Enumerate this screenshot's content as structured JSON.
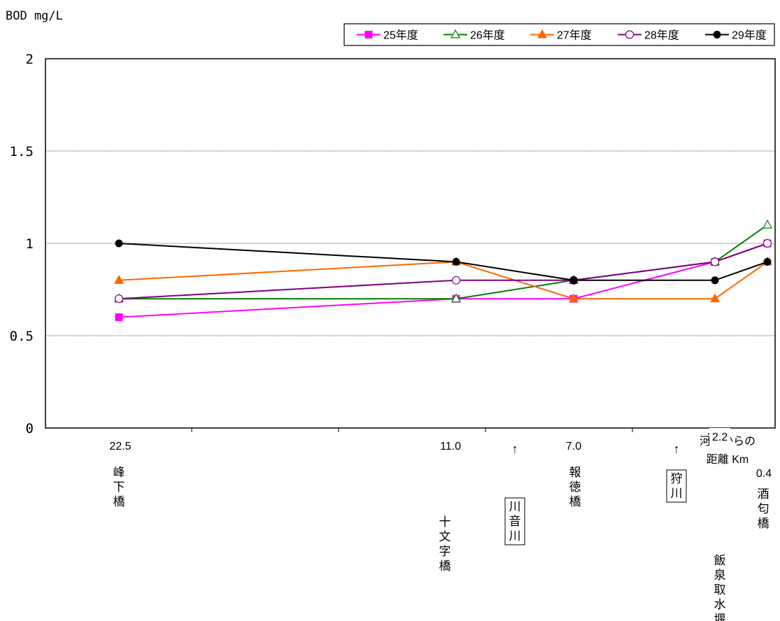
{
  "chart_data": {
    "type": "line",
    "ylabel": "BOD mg/L",
    "xlabel": "河口からの距離 Km",
    "ylim": [
      0,
      2
    ],
    "yticks": [
      "0",
      "0.5",
      "1",
      "1.5",
      "2"
    ],
    "grid": true,
    "legend_position": "top-right",
    "x": [
      22.5,
      11.0,
      7.0,
      2.2,
      0.4
    ],
    "x_labels": [
      "22.5",
      "11.0",
      "7.0",
      "2.2",
      "0.4"
    ],
    "stations": [
      "峰下橋",
      "十文字橋",
      "報徳橋",
      "飯泉取水堰上",
      "酒匂橋"
    ],
    "tributaries": [
      {
        "name": "川音川",
        "arrow": "↑"
      },
      {
        "name": "狩川",
        "arrow": "↑"
      }
    ],
    "series": [
      {
        "name": "25年度",
        "color": "#ff00ff",
        "marker": "square-filled",
        "values": [
          0.6,
          0.7,
          0.7,
          0.9,
          1.0
        ]
      },
      {
        "name": "26年度",
        "color": "#008000",
        "marker": "triangle-open",
        "values": [
          0.7,
          0.7,
          0.8,
          0.9,
          1.1
        ]
      },
      {
        "name": "27年度",
        "color": "#ff6600",
        "marker": "triangle-filled",
        "values": [
          0.8,
          0.9,
          0.7,
          0.7,
          0.9
        ]
      },
      {
        "name": "28年度",
        "color": "#800080",
        "marker": "circle-open",
        "values": [
          0.7,
          0.8,
          0.8,
          0.9,
          1.0
        ]
      },
      {
        "name": "29年度",
        "color": "#000000",
        "marker": "circle-filled",
        "values": [
          1.0,
          0.9,
          0.8,
          0.8,
          0.9
        ]
      }
    ]
  }
}
